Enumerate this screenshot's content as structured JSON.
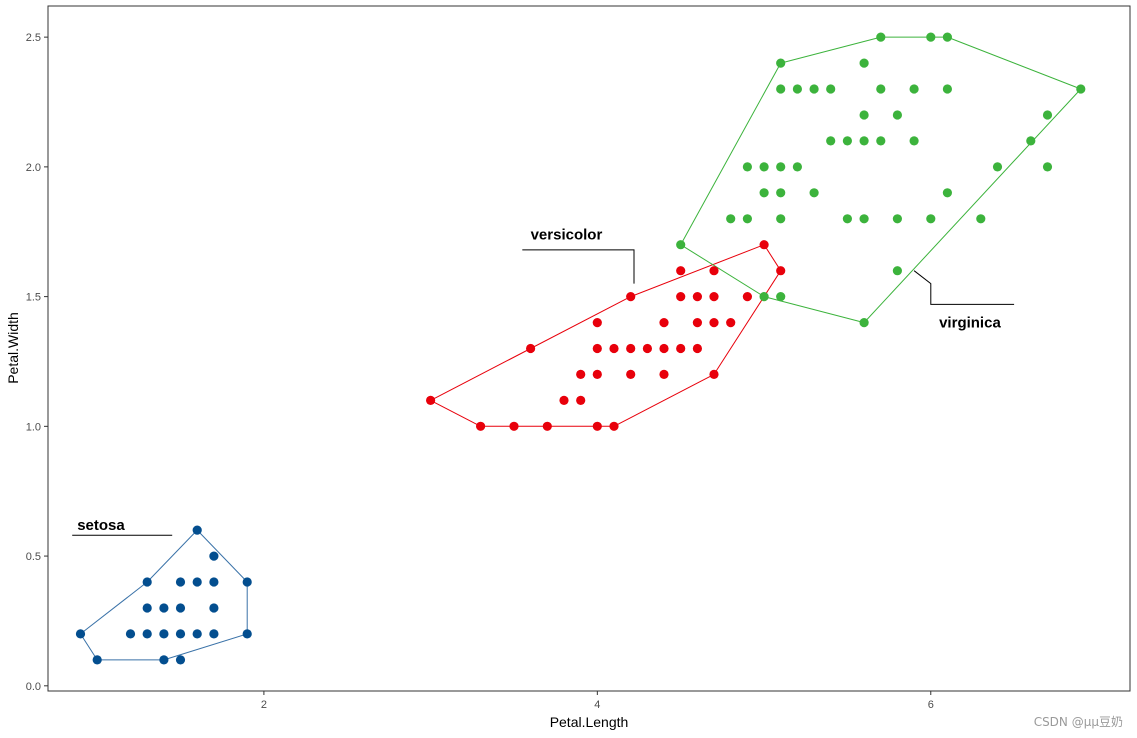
{
  "chart_data": {
    "type": "scatter",
    "xlabel": "Petal.Length",
    "ylabel": "Petal.Width",
    "xlim": [
      0.705,
      7.195
    ],
    "ylim": [
      -0.02,
      2.62
    ],
    "xticks": [
      2,
      4,
      6
    ],
    "yticks": [
      0.0,
      0.5,
      1.0,
      1.5,
      2.0,
      2.5
    ],
    "ytick_labels": [
      "0.0",
      "0.5",
      "1.0",
      "1.5",
      "2.0",
      "2.5"
    ],
    "grid": false,
    "legend": "none",
    "series": [
      {
        "name": "setosa",
        "color": "#034e8f",
        "hull_color": "#3a72a8",
        "points": [
          [
            1.6,
            0.6
          ],
          [
            1.7,
            0.5
          ],
          [
            1.3,
            0.4
          ],
          [
            1.5,
            0.4
          ],
          [
            1.6,
            0.4
          ],
          [
            1.7,
            0.4
          ],
          [
            1.9,
            0.4
          ],
          [
            1.3,
            0.3
          ],
          [
            1.4,
            0.3
          ],
          [
            1.5,
            0.3
          ],
          [
            1.7,
            0.3
          ],
          [
            0.9,
            0.2
          ],
          [
            1.2,
            0.2
          ],
          [
            1.3,
            0.2
          ],
          [
            1.4,
            0.2
          ],
          [
            1.5,
            0.2
          ],
          [
            1.6,
            0.2
          ],
          [
            1.7,
            0.2
          ],
          [
            1.9,
            0.2
          ],
          [
            1.0,
            0.1
          ],
          [
            1.4,
            0.1
          ],
          [
            1.5,
            0.1
          ]
        ],
        "hull": [
          [
            1.0,
            0.1
          ],
          [
            1.4,
            0.1
          ],
          [
            1.9,
            0.2
          ],
          [
            1.9,
            0.4
          ],
          [
            1.6,
            0.6
          ],
          [
            1.3,
            0.4
          ],
          [
            0.9,
            0.2
          ]
        ],
        "annotation": {
          "text": "setosa",
          "text_at": [
            0.88,
            0.6
          ],
          "line": [
            [
              0.85,
              0.58
            ],
            [
              1.45,
              0.58
            ]
          ]
        }
      },
      {
        "name": "versicolor",
        "color": "#e8000b",
        "hull_color": "#e8000b",
        "points": [
          [
            5.0,
            1.7
          ],
          [
            4.5,
            1.6
          ],
          [
            4.7,
            1.6
          ],
          [
            5.1,
            1.6
          ],
          [
            4.2,
            1.5
          ],
          [
            4.5,
            1.5
          ],
          [
            4.6,
            1.5
          ],
          [
            4.7,
            1.5
          ],
          [
            4.9,
            1.5
          ],
          [
            4.0,
            1.4
          ],
          [
            4.4,
            1.4
          ],
          [
            4.6,
            1.4
          ],
          [
            4.7,
            1.4
          ],
          [
            4.8,
            1.4
          ],
          [
            3.6,
            1.3
          ],
          [
            4.0,
            1.3
          ],
          [
            4.1,
            1.3
          ],
          [
            4.2,
            1.3
          ],
          [
            4.3,
            1.3
          ],
          [
            4.4,
            1.3
          ],
          [
            4.5,
            1.3
          ],
          [
            4.6,
            1.3
          ],
          [
            3.9,
            1.2
          ],
          [
            4.0,
            1.2
          ],
          [
            4.2,
            1.2
          ],
          [
            4.4,
            1.2
          ],
          [
            4.7,
            1.2
          ],
          [
            3.0,
            1.1
          ],
          [
            3.8,
            1.1
          ],
          [
            3.9,
            1.1
          ],
          [
            3.3,
            1.0
          ],
          [
            3.5,
            1.0
          ],
          [
            3.7,
            1.0
          ],
          [
            4.0,
            1.0
          ],
          [
            4.1,
            1.0
          ]
        ],
        "hull": [
          [
            3.3,
            1.0
          ],
          [
            4.1,
            1.0
          ],
          [
            4.7,
            1.2
          ],
          [
            5.1,
            1.6
          ],
          [
            5.0,
            1.7
          ],
          [
            4.2,
            1.5
          ],
          [
            3.0,
            1.1
          ]
        ],
        "annotation": {
          "text": "versicolor",
          "text_at": [
            3.6,
            1.72
          ],
          "line": [
            [
              3.55,
              1.68
            ],
            [
              4.22,
              1.68
            ],
            [
              4.22,
              1.55
            ]
          ]
        }
      },
      {
        "name": "virginica",
        "color": "#3cb33c",
        "hull_color": "#3cb33c",
        "points": [
          [
            5.7,
            2.5
          ],
          [
            6.0,
            2.5
          ],
          [
            6.1,
            2.5
          ],
          [
            5.1,
            2.4
          ],
          [
            5.6,
            2.4
          ],
          [
            5.1,
            2.3
          ],
          [
            5.2,
            2.3
          ],
          [
            5.3,
            2.3
          ],
          [
            5.4,
            2.3
          ],
          [
            5.7,
            2.3
          ],
          [
            5.9,
            2.3
          ],
          [
            6.1,
            2.3
          ],
          [
            6.9,
            2.3
          ],
          [
            5.6,
            2.2
          ],
          [
            5.8,
            2.2
          ],
          [
            6.7,
            2.2
          ],
          [
            5.4,
            2.1
          ],
          [
            5.5,
            2.1
          ],
          [
            5.6,
            2.1
          ],
          [
            5.7,
            2.1
          ],
          [
            5.9,
            2.1
          ],
          [
            6.6,
            2.1
          ],
          [
            4.9,
            2.0
          ],
          [
            5.0,
            2.0
          ],
          [
            5.1,
            2.0
          ],
          [
            5.2,
            2.0
          ],
          [
            6.4,
            2.0
          ],
          [
            6.7,
            2.0
          ],
          [
            5.0,
            1.9
          ],
          [
            5.1,
            1.9
          ],
          [
            5.3,
            1.9
          ],
          [
            6.1,
            1.9
          ],
          [
            4.8,
            1.8
          ],
          [
            4.9,
            1.8
          ],
          [
            5.1,
            1.8
          ],
          [
            5.5,
            1.8
          ],
          [
            5.6,
            1.8
          ],
          [
            5.8,
            1.8
          ],
          [
            6.0,
            1.8
          ],
          [
            6.3,
            1.8
          ],
          [
            4.5,
            1.7
          ],
          [
            5.8,
            1.6
          ],
          [
            5.0,
            1.5
          ],
          [
            5.1,
            1.5
          ],
          [
            5.6,
            1.4
          ]
        ],
        "hull": [
          [
            5.6,
            1.4
          ],
          [
            6.9,
            2.3
          ],
          [
            6.1,
            2.5
          ],
          [
            5.7,
            2.5
          ],
          [
            5.1,
            2.4
          ],
          [
            4.5,
            1.7
          ],
          [
            5.0,
            1.5
          ]
        ],
        "annotation": {
          "text": "virginica",
          "text_at": [
            6.05,
            1.38
          ],
          "line": [
            [
              5.9,
              1.6
            ],
            [
              6.0,
              1.55
            ],
            [
              6.0,
              1.47
            ],
            [
              6.5,
              1.47
            ]
          ]
        }
      }
    ]
  },
  "watermark": "CSDN @μμ豆奶"
}
